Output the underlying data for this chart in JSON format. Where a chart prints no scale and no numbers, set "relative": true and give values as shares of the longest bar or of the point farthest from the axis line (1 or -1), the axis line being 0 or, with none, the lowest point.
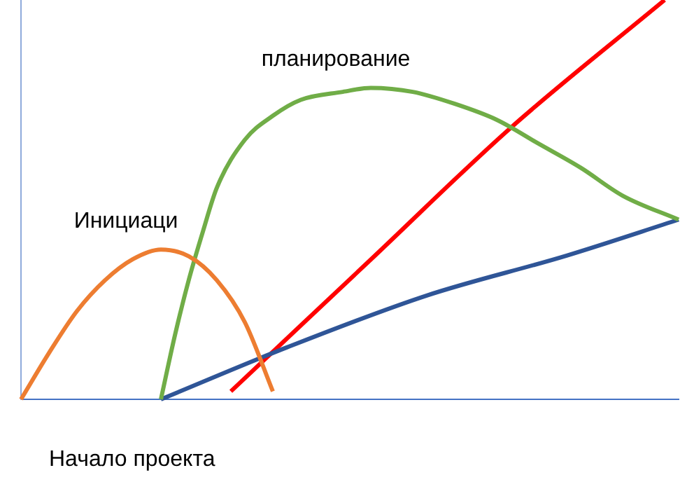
{
  "chart_data": {
    "type": "line",
    "relative": true,
    "grid": false,
    "marker": "none",
    "line_style": "solid",
    "legend": false,
    "categories": [
      null,
      null,
      null,
      null,
      null,
      null,
      null,
      null,
      null,
      null,
      null,
      null,
      null,
      null,
      null,
      null,
      null,
      null,
      null,
      null,
      null,
      null,
      null,
      null,
      null,
      null,
      null,
      null,
      null,
      null,
      null,
      null,
      null,
      null,
      null,
      null,
      null,
      null,
      null,
      null,
      null,
      null,
      null,
      null,
      null,
      null,
      null,
      null
    ],
    "annotations": [
      "Начало проекта"
    ],
    "series": [
      {
        "name": "Инициаци",
        "color": "#ed7d31",
        "values": [
          0,
          null,
          0.116,
          null,
          0.221,
          null,
          0.298,
          null,
          0.351,
          null,
          0.375,
          null,
          0.358,
          null,
          0.298,
          null,
          0.193,
          null,
          0.02,
          null,
          null,
          null,
          null,
          null,
          null,
          null,
          null,
          null,
          null,
          null,
          null,
          null,
          null,
          null,
          null,
          null,
          null,
          null,
          null,
          null,
          null,
          null,
          null,
          null,
          null,
          null,
          null,
          null
        ]
      },
      {
        "name": "планирование",
        "color": "#70ad47",
        "values": [
          null,
          null,
          null,
          null,
          null,
          null,
          null,
          null,
          null,
          null,
          0,
          0.16,
          0.3,
          0.42,
          0.53,
          null,
          0.65,
          null,
          0.71,
          null,
          0.75,
          null,
          null,
          0.77,
          null,
          0.78,
          null,
          null,
          0.77,
          null,
          null,
          0.74,
          null,
          null,
          0.7,
          null,
          null,
          0.64,
          null,
          null,
          0.58,
          null,
          null,
          0.51,
          null,
          null,
          null,
          0.45
        ]
      },
      {
        "color": "#2f5597",
        "values": [
          null,
          null,
          null,
          null,
          null,
          null,
          null,
          null,
          null,
          null,
          0,
          null,
          null,
          null,
          null,
          null,
          null,
          null,
          null,
          0.13,
          null,
          null,
          null,
          null,
          null,
          null,
          null,
          null,
          null,
          0.26,
          null,
          null,
          null,
          null,
          null,
          null,
          null,
          null,
          null,
          0.36,
          null,
          null,
          null,
          null,
          null,
          null,
          null,
          0.45
        ]
      },
      {
        "color": "#ff0000",
        "values": [
          null,
          null,
          null,
          null,
          null,
          null,
          null,
          null,
          null,
          null,
          null,
          null,
          null,
          null,
          null,
          0.02,
          null,
          null,
          null,
          null,
          null,
          null,
          null,
          null,
          null,
          0.35,
          null,
          null,
          null,
          null,
          null,
          null,
          null,
          null,
          null,
          0.68,
          null,
          null,
          null,
          null,
          null,
          null,
          null,
          null,
          null,
          null,
          1,
          null
        ]
      }
    ]
  }
}
